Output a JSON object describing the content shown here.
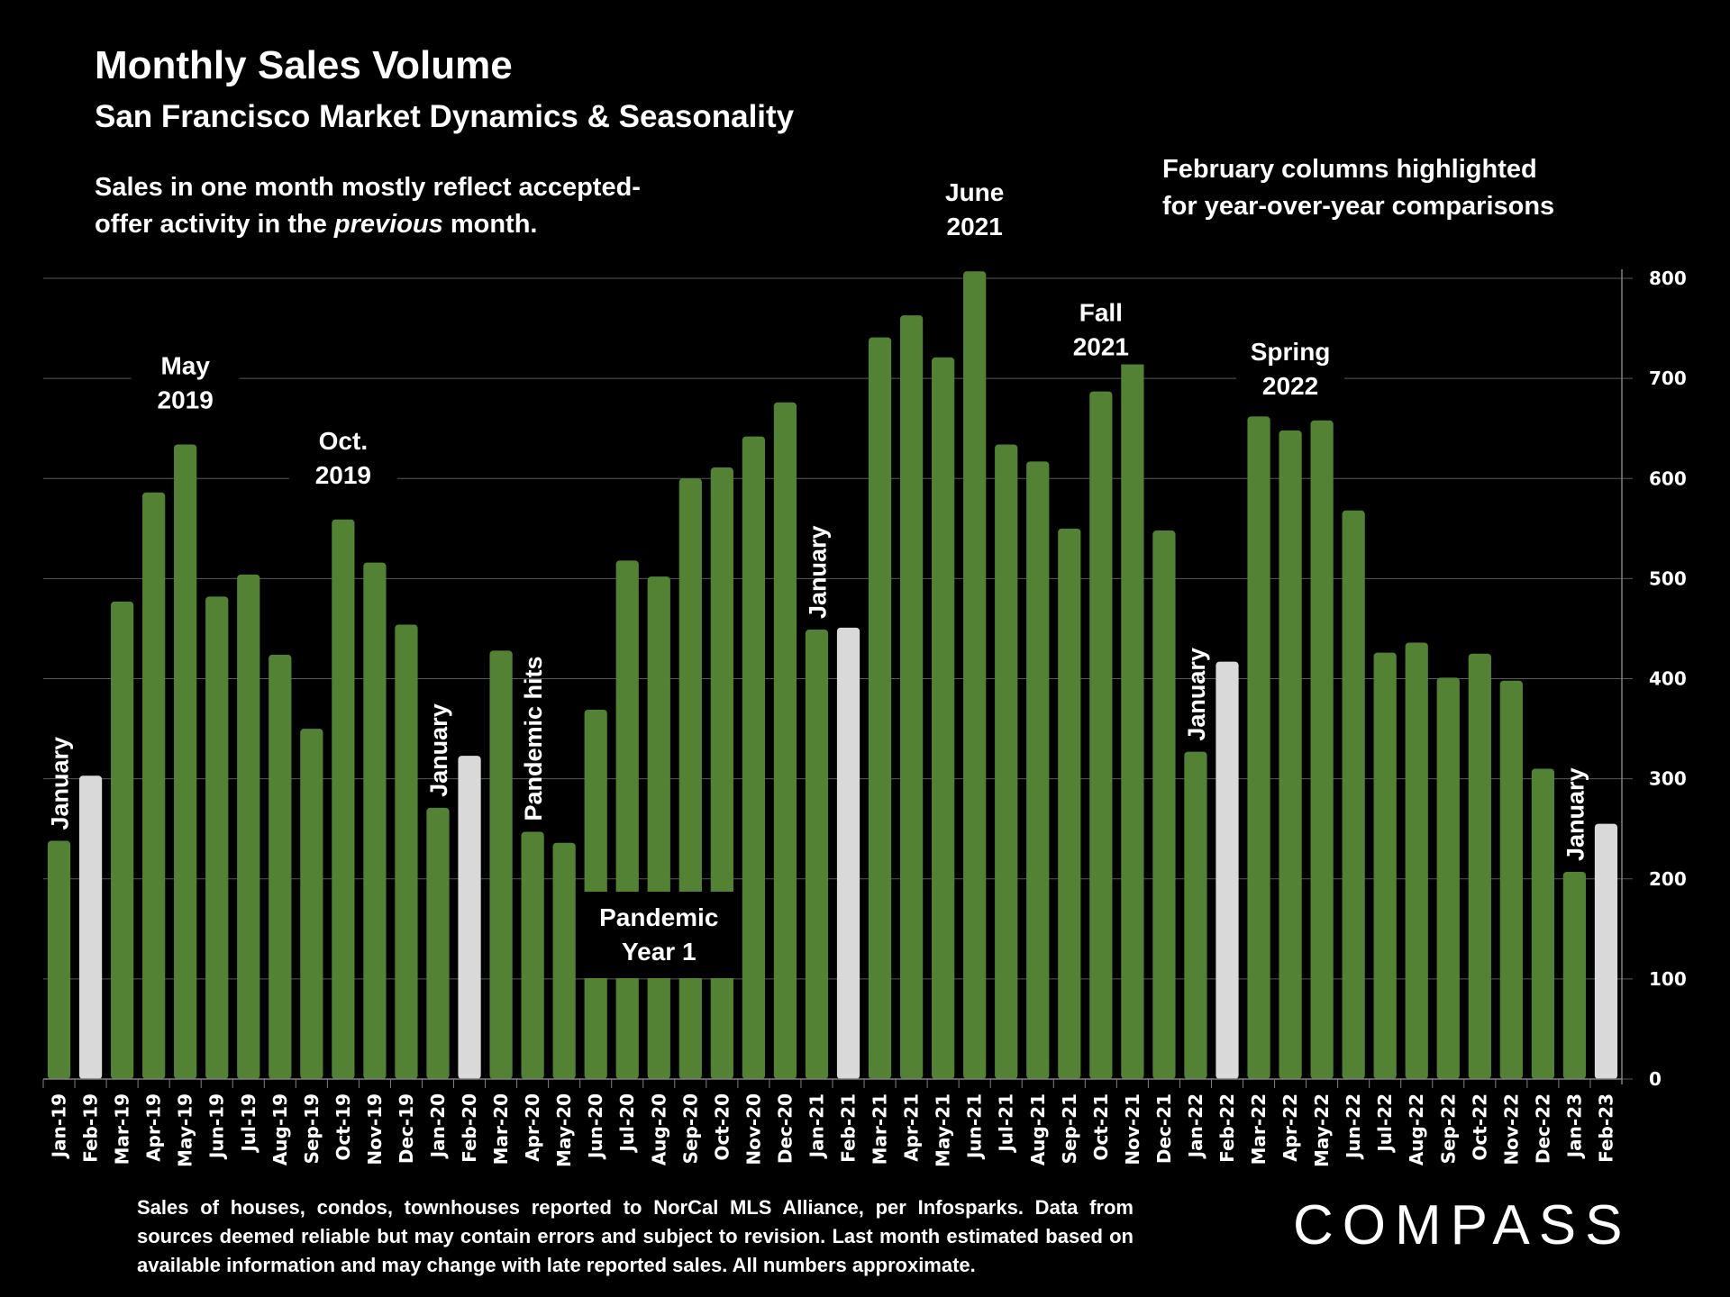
{
  "header": {
    "title": "Monthly Sales Volume",
    "subtitle": "San Francisco Market Dynamics & Seasonality",
    "note_left_line1": "Sales in one month mostly reflect accepted-",
    "note_left_line2_pre": "offer activity in the ",
    "note_left_line2_em": "previous",
    "note_left_line2_post": " month.",
    "note_right_line1": "February columns highlighted",
    "note_right_line2": "for year-over-year comparisons"
  },
  "footer": {
    "footnote": "Sales of houses, condos, townhouses reported to NorCal MLS Alliance, per Infosparks. Data from sources deemed reliable but may contain errors and subject to revision. Last month estimated based on available information and may change with late reported sales. All numbers approximate.",
    "logo": "COMPASS"
  },
  "colors": {
    "background": "#000000",
    "bar": "#548235",
    "highlight_bar": "#d9d9d9",
    "gridline": "#595959",
    "text": "#ffffff"
  },
  "chart_data": {
    "type": "bar",
    "title": "Monthly Sales Volume",
    "subtitle": "San Francisco Market Dynamics & Seasonality",
    "xlabel": "",
    "ylabel": "",
    "y_axis_side": "right",
    "ylim": [
      0,
      800
    ],
    "yticks": [
      0,
      100,
      200,
      300,
      400,
      500,
      600,
      700,
      800
    ],
    "grid": true,
    "categories": [
      "Jan-19",
      "Feb-19",
      "Mar-19",
      "Apr-19",
      "May-19",
      "Jun-19",
      "Jul-19",
      "Aug-19",
      "Sep-19",
      "Oct-19",
      "Nov-19",
      "Dec-19",
      "Jan-20",
      "Feb-20",
      "Mar-20",
      "Apr-20",
      "May-20",
      "Jun-20",
      "Jul-20",
      "Aug-20",
      "Sep-20",
      "Oct-20",
      "Nov-20",
      "Dec-20",
      "Jan-21",
      "Feb-21",
      "Mar-21",
      "Apr-21",
      "May-21",
      "Jun-21",
      "Jul-21",
      "Aug-21",
      "Sep-21",
      "Oct-21",
      "Nov-21",
      "Dec-21",
      "Jan-22",
      "Feb-22",
      "Mar-22",
      "Apr-22",
      "May-22",
      "Jun-22",
      "Jul-22",
      "Aug-22",
      "Sep-22",
      "Oct-22",
      "Nov-22",
      "Dec-22",
      "Jan-23",
      "Feb-23"
    ],
    "values": [
      238,
      303,
      477,
      586,
      634,
      482,
      504,
      424,
      350,
      559,
      516,
      454,
      271,
      323,
      428,
      247,
      236,
      369,
      518,
      502,
      600,
      611,
      642,
      676,
      449,
      451,
      741,
      763,
      721,
      807,
      634,
      617,
      550,
      687,
      727,
      548,
      327,
      417,
      662,
      648,
      658,
      568,
      426,
      436,
      401,
      425,
      398,
      310,
      207,
      255
    ],
    "highlighted": [
      "Feb-19",
      "Feb-20",
      "Feb-21",
      "Feb-22",
      "Feb-23"
    ],
    "annotations": [
      {
        "text": "January",
        "category": "Jan-19",
        "orientation": "vertical"
      },
      {
        "text": "May\n2019",
        "category": "May-19",
        "orientation": "horizontal"
      },
      {
        "text": "Oct.\n2019",
        "category": "Oct-19",
        "orientation": "horizontal"
      },
      {
        "text": "January",
        "category": "Jan-20",
        "orientation": "vertical"
      },
      {
        "text": "Pandemic hits",
        "category": "Apr-20",
        "orientation": "vertical"
      },
      {
        "text": "Pandemic\nYear 1",
        "category": "Aug-20",
        "orientation": "boxed"
      },
      {
        "text": "January",
        "category": "Jan-21",
        "orientation": "vertical"
      },
      {
        "text": "June\n2021",
        "category": "Jun-21",
        "orientation": "horizontal"
      },
      {
        "text": "Fall\n2021",
        "category": "Oct-21",
        "orientation": "horizontal"
      },
      {
        "text": "January",
        "category": "Jan-22",
        "orientation": "vertical"
      },
      {
        "text": "Spring\n2022",
        "category": "Apr-22",
        "orientation": "horizontal"
      },
      {
        "text": "January",
        "category": "Jan-23",
        "orientation": "vertical"
      }
    ]
  }
}
